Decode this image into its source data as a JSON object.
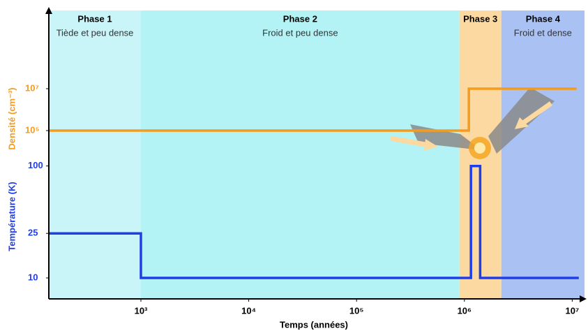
{
  "chart_data": {
    "type": "line",
    "xlabel": "Temps (années)",
    "ylabel": "Température (K)",
    "y2label": "Densité (cm⁻³)",
    "xscale": "log",
    "yscale": "log",
    "y2scale": "log",
    "xlim": [
      140,
      13000000
    ],
    "ylim": [
      6.5,
      2450
    ],
    "y2lim": [
      0.00093,
      54000000000
    ],
    "xticks": [
      {
        "value": 1000,
        "label": "10³"
      },
      {
        "value": 10000,
        "label": "10⁴"
      },
      {
        "value": 100000,
        "label": "10⁵"
      },
      {
        "value": 1000000,
        "label": "10⁶"
      },
      {
        "value": 10000000,
        "label": "10⁷"
      }
    ],
    "yticks": [
      10,
      25,
      100
    ],
    "y2ticks": [
      {
        "value": 100000,
        "label": "10⁵"
      },
      {
        "value": 10000000,
        "label": "10⁷"
      }
    ],
    "phases": [
      {
        "name": "Phase 1",
        "description": "Tiède et peu dense",
        "start": 140,
        "end": 1000,
        "color": "#c9f5f9"
      },
      {
        "name": "Phase 2",
        "description": "Froid et peu dense",
        "start": 1000,
        "end": 900000,
        "color": "#b3f3f5"
      },
      {
        "name": "Phase 3",
        "start": 900000,
        "end": 2200000,
        "color": "#fbd9a0"
      },
      {
        "name": "Phase 4",
        "description": "Froid et dense",
        "start": 2200000,
        "end": 13000000,
        "color": "#a9c2f3"
      }
    ],
    "series": [
      {
        "name": "Densité",
        "color": "#f39c1f",
        "axis": "y2",
        "x": [
          140,
          1100000,
          1100000,
          11000000
        ],
        "values": [
          100000,
          100000,
          10000000,
          10000000
        ]
      },
      {
        "name": "Température",
        "color": "#1f3ee8",
        "axis": "y",
        "x": [
          140,
          1000,
          1000,
          1150000,
          1150000,
          1400000,
          1400000,
          11500000
        ],
        "values": [
          25,
          25,
          10,
          10,
          100,
          100,
          10,
          10
        ]
      }
    ]
  }
}
